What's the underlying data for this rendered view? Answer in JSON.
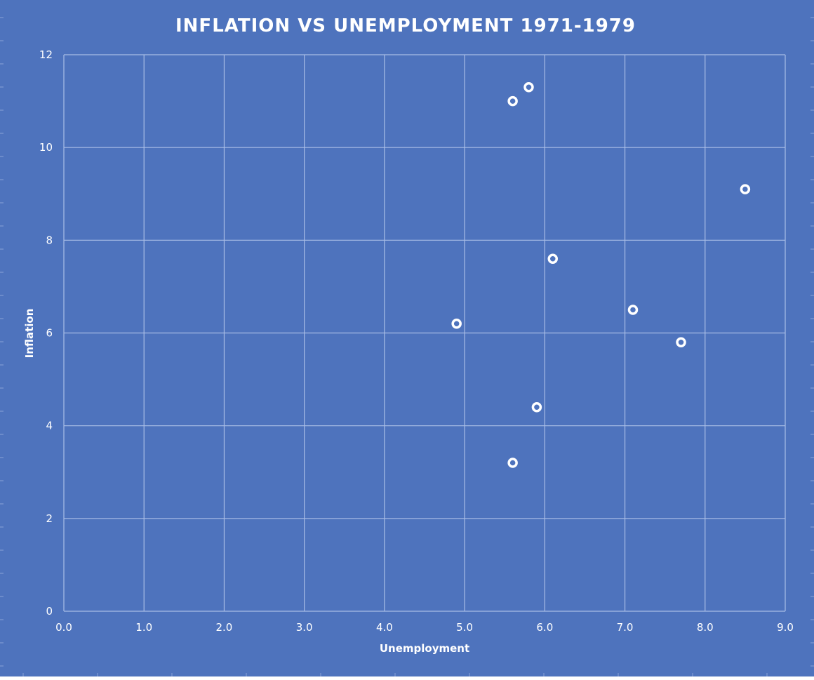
{
  "chart_data": {
    "type": "scatter",
    "title": "INFLATION VS UNEMPLOYMENT 1971-1979",
    "xlabel": "Unemployment",
    "ylabel": "Inflation",
    "xlim": [
      0,
      9
    ],
    "ylim": [
      0,
      12
    ],
    "x_ticks": [
      "0.0",
      "1.0",
      "2.0",
      "3.0",
      "4.0",
      "5.0",
      "6.0",
      "7.0",
      "8.0",
      "9.0"
    ],
    "y_ticks": [
      "0",
      "2",
      "4",
      "6",
      "8",
      "10",
      "12"
    ],
    "grid": true,
    "legend": "none",
    "points": [
      {
        "x": 5.9,
        "y": 4.4
      },
      {
        "x": 5.6,
        "y": 3.2
      },
      {
        "x": 4.9,
        "y": 6.2
      },
      {
        "x": 5.6,
        "y": 11.0
      },
      {
        "x": 8.5,
        "y": 9.1
      },
      {
        "x": 7.7,
        "y": 5.8
      },
      {
        "x": 7.1,
        "y": 6.5
      },
      {
        "x": 6.1,
        "y": 7.6
      },
      {
        "x": 5.8,
        "y": 11.3
      }
    ],
    "colors": {
      "background": "#4e73bd",
      "grid": "#a9bde6",
      "marker": "#ffffff",
      "text": "#ffffff"
    }
  }
}
